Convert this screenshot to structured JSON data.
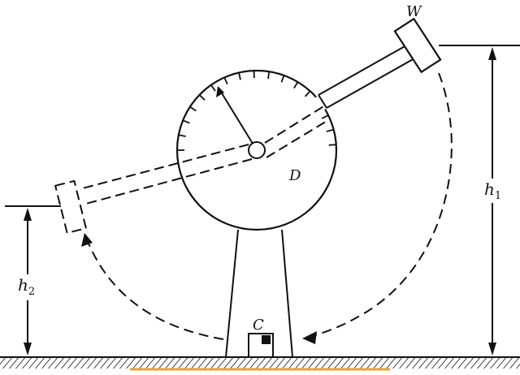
{
  "labels": {
    "hammer": "W",
    "dial": "D",
    "specimen": "C",
    "h1_letter": "h",
    "h1_sub": "1",
    "h2_letter": "h",
    "h2_sub": "2"
  },
  "colors": {
    "ink": "#111111",
    "ground_hatch": "#111111",
    "ground_highlight": "#e8a23a",
    "specimen_notch": "#111111",
    "background": "#ffffff"
  },
  "icons": {
    "arrowhead": "filled-triangle"
  }
}
